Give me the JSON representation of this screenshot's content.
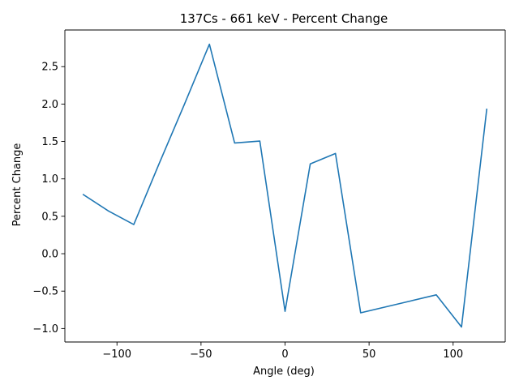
{
  "chart_data": {
    "type": "line",
    "title": "137Cs - 661 keV - Percent Change",
    "xlabel": "Angle (deg)",
    "ylabel": "Percent Change",
    "xlim": [
      -131,
      131
    ],
    "ylim": [
      -1.18,
      2.99
    ],
    "xticks": [
      -100,
      -50,
      0,
      50,
      100
    ],
    "xtick_labels": [
      "−100",
      "−50",
      "0",
      "50",
      "100"
    ],
    "yticks": [
      -1.0,
      -0.5,
      0.0,
      0.5,
      1.0,
      1.5,
      2.0,
      2.5
    ],
    "ytick_labels": [
      "−1.0",
      "−0.5",
      "0.0",
      "0.5",
      "1.0",
      "1.5",
      "2.0",
      "2.5"
    ],
    "grid": false,
    "series": [
      {
        "color": "#1f77b4",
        "x": [
          -120,
          -105,
          -90,
          -75,
          -60,
          -45,
          -30,
          -15,
          0,
          15,
          30,
          45,
          60,
          75,
          90,
          105,
          120
        ],
        "y": [
          0.79,
          0.57,
          0.39,
          1.2,
          1.99,
          2.8,
          1.48,
          1.505,
          -0.77,
          1.2,
          1.34,
          -0.79,
          -0.71,
          -0.63,
          -0.55,
          -0.98,
          1.93
        ]
      }
    ]
  }
}
